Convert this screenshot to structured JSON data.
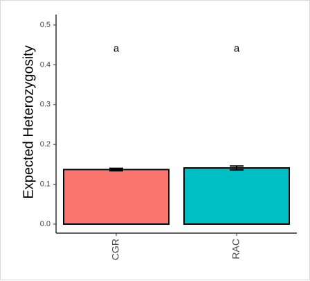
{
  "chart_data": {
    "type": "bar",
    "categories": [
      "CGR",
      "RAC"
    ],
    "values": [
      0.137,
      0.141
    ],
    "errors": [
      0.003,
      0.005
    ],
    "annotations": [
      "a",
      "a"
    ],
    "colors": [
      "#F8766D",
      "#00BFC4"
    ],
    "ylabel": "Expected Heterozygosity",
    "xlabel": "",
    "ylim": [
      0,
      0.5
    ],
    "yticks": [
      "0.0",
      "0.1",
      "0.2",
      "0.3",
      "0.4",
      "0.5"
    ],
    "grid": false,
    "legend": "none"
  }
}
